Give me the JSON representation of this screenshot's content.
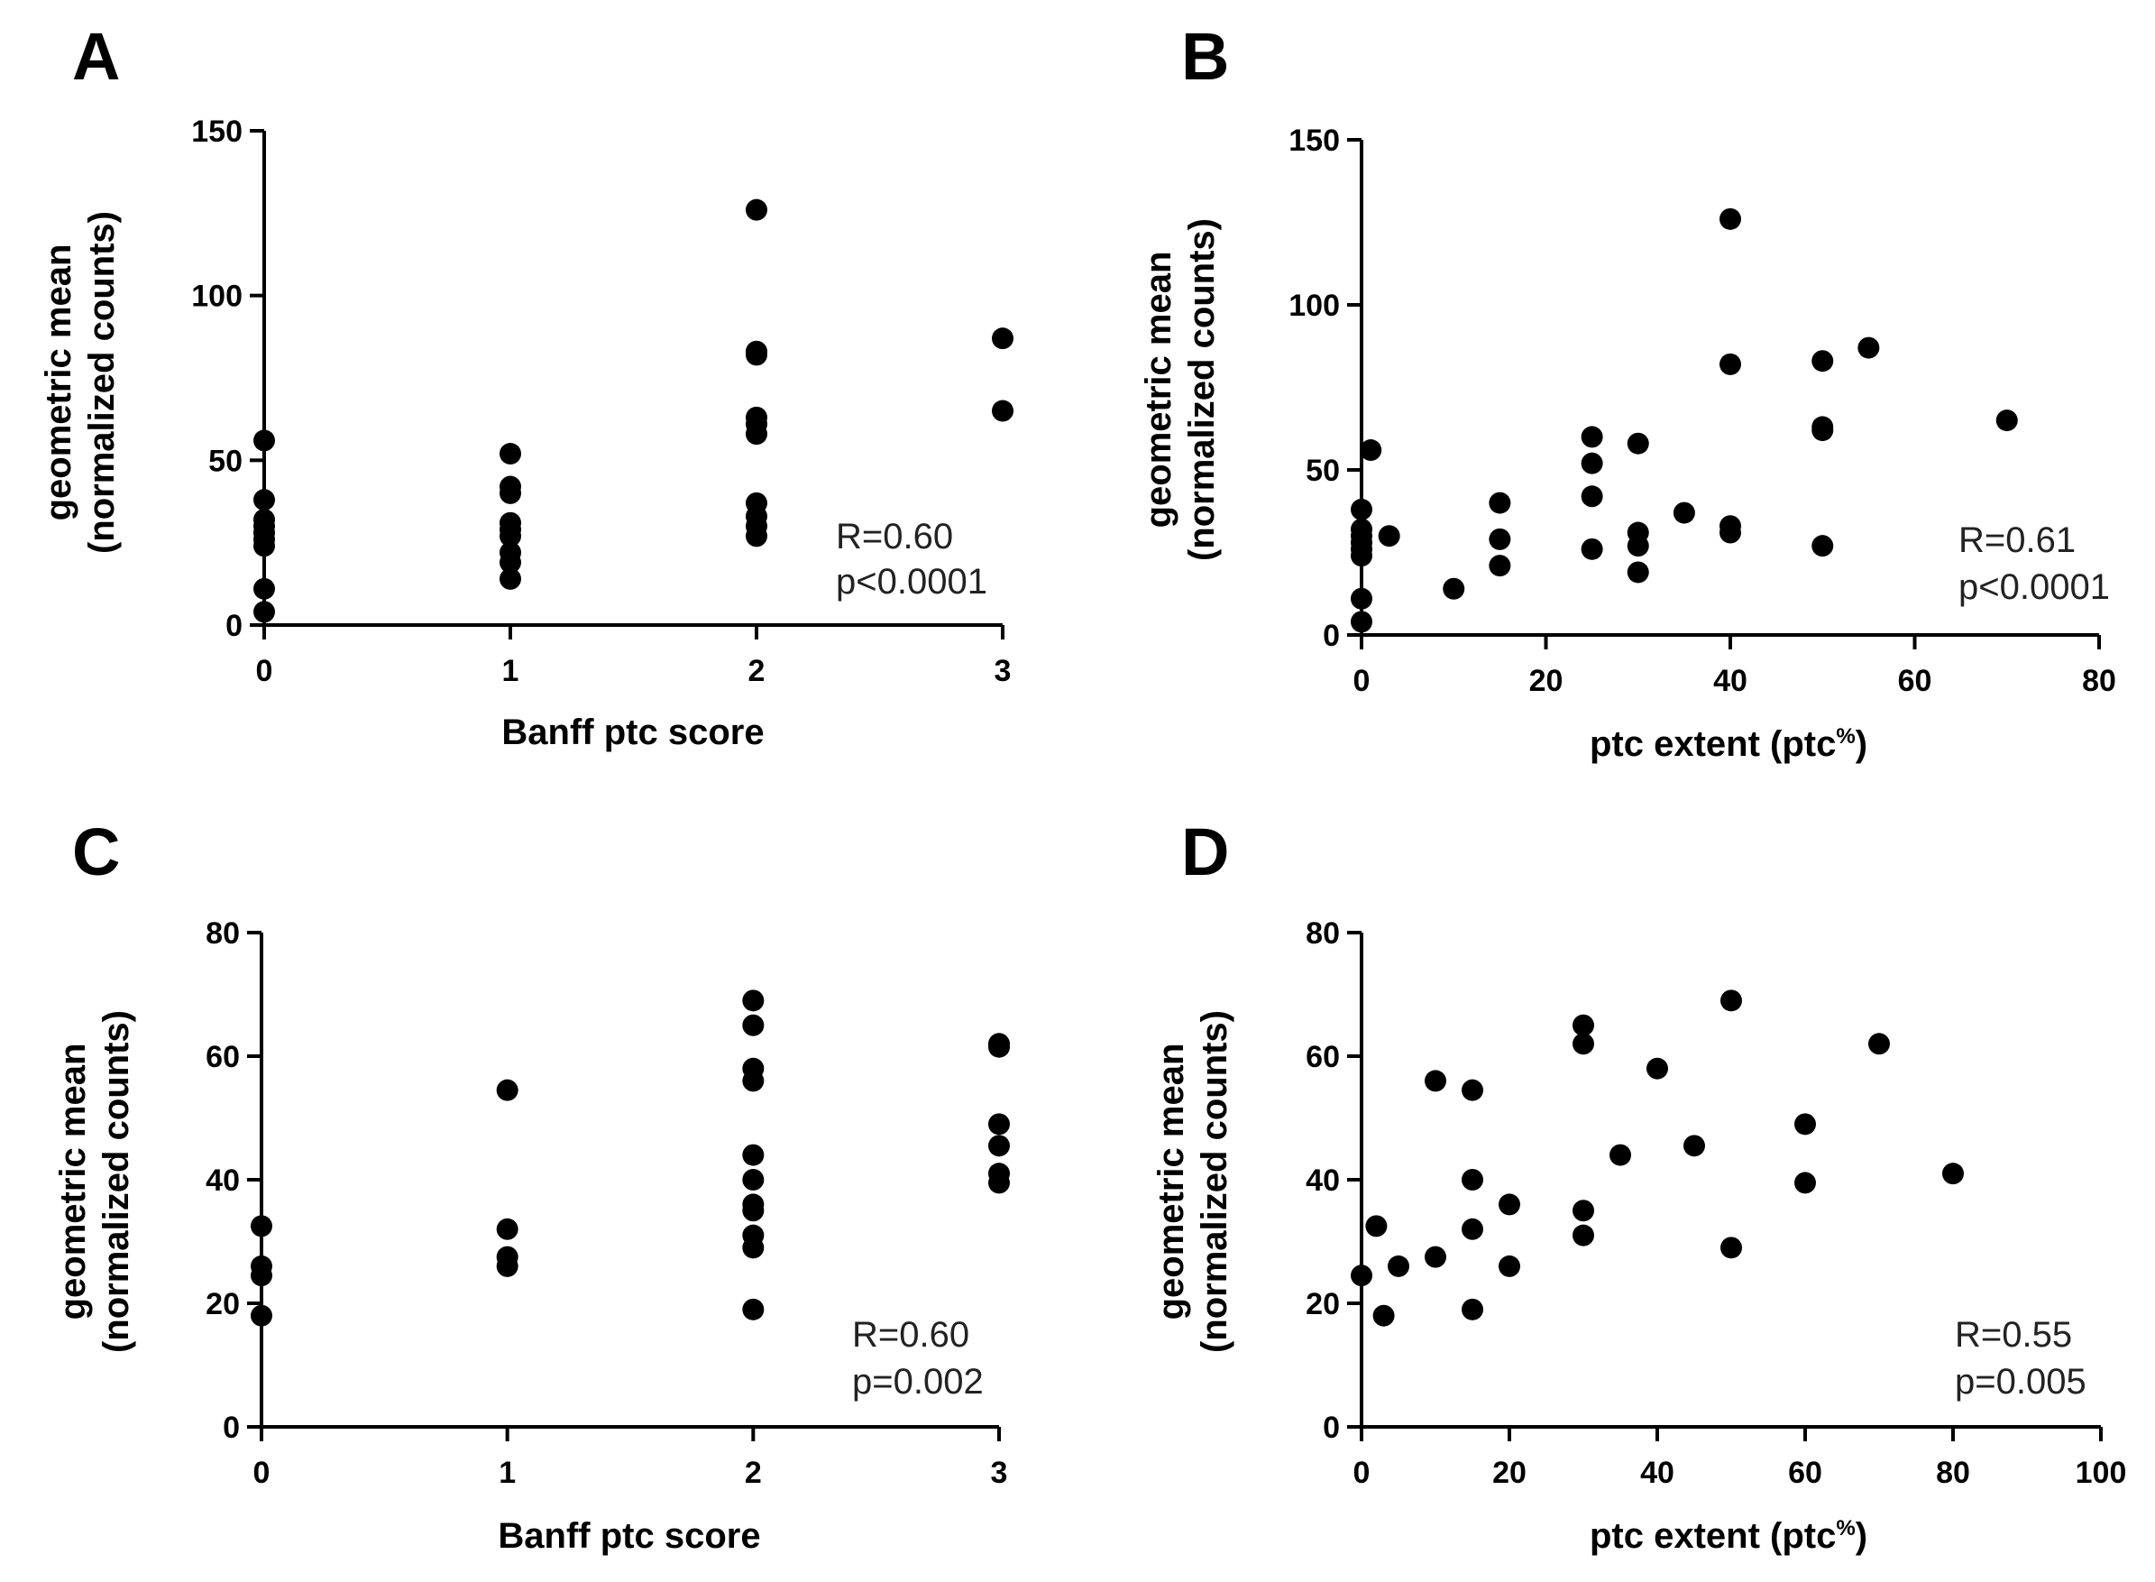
{
  "chart_data": [
    {
      "type": "scatter",
      "panel": "A",
      "title": "",
      "xlabel": "Banff ptc score",
      "ylabel_line1": "geometric mean",
      "ylabel_line2": "(normalized counts)",
      "xlim": [
        0,
        3
      ],
      "ylim": [
        0,
        150
      ],
      "xticks": [
        0,
        1,
        2,
        3
      ],
      "yticks": [
        0,
        50,
        100,
        150
      ],
      "grid": false,
      "stat_r": "R=0.60",
      "stat_p": "p<0.0001",
      "points": [
        {
          "x": 0,
          "y": 56
        },
        {
          "x": 0,
          "y": 38
        },
        {
          "x": 0,
          "y": 32
        },
        {
          "x": 0,
          "y": 30
        },
        {
          "x": 0,
          "y": 28
        },
        {
          "x": 0,
          "y": 26
        },
        {
          "x": 0,
          "y": 24
        },
        {
          "x": 0,
          "y": 11
        },
        {
          "x": 0,
          "y": 4
        },
        {
          "x": 1,
          "y": 52
        },
        {
          "x": 1,
          "y": 42
        },
        {
          "x": 1,
          "y": 40
        },
        {
          "x": 1,
          "y": 31
        },
        {
          "x": 1,
          "y": 29
        },
        {
          "x": 1,
          "y": 27
        },
        {
          "x": 1,
          "y": 22
        },
        {
          "x": 1,
          "y": 19
        },
        {
          "x": 1,
          "y": 14
        },
        {
          "x": 2,
          "y": 126
        },
        {
          "x": 2,
          "y": 83
        },
        {
          "x": 2,
          "y": 82
        },
        {
          "x": 2,
          "y": 63
        },
        {
          "x": 2,
          "y": 61
        },
        {
          "x": 2,
          "y": 58
        },
        {
          "x": 2,
          "y": 37
        },
        {
          "x": 2,
          "y": 33
        },
        {
          "x": 2,
          "y": 30
        },
        {
          "x": 2,
          "y": 27
        },
        {
          "x": 3,
          "y": 87
        },
        {
          "x": 3,
          "y": 65
        }
      ]
    },
    {
      "type": "scatter",
      "panel": "B",
      "title": "",
      "xlabel": "ptc extent (ptc",
      "xlabel_sup": "%",
      "xlabel_end": ")",
      "ylabel_line1": "geometric mean",
      "ylabel_line2": "(normalized counts)",
      "xlim": [
        0,
        80
      ],
      "ylim": [
        0,
        150
      ],
      "xticks": [
        0,
        20,
        40,
        60,
        80
      ],
      "yticks": [
        0,
        50,
        100,
        150
      ],
      "grid": false,
      "stat_r": "R=0.61",
      "stat_p": "p<0.0001",
      "points": [
        {
          "x": 0,
          "y": 38
        },
        {
          "x": 0,
          "y": 32
        },
        {
          "x": 0,
          "y": 30
        },
        {
          "x": 0,
          "y": 28
        },
        {
          "x": 0,
          "y": 26
        },
        {
          "x": 0,
          "y": 24
        },
        {
          "x": 0,
          "y": 11
        },
        {
          "x": 0,
          "y": 4
        },
        {
          "x": 1,
          "y": 56
        },
        {
          "x": 3,
          "y": 30
        },
        {
          "x": 10,
          "y": 14
        },
        {
          "x": 15,
          "y": 40
        },
        {
          "x": 15,
          "y": 29
        },
        {
          "x": 15,
          "y": 21
        },
        {
          "x": 25,
          "y": 60
        },
        {
          "x": 25,
          "y": 52
        },
        {
          "x": 25,
          "y": 42
        },
        {
          "x": 25,
          "y": 26
        },
        {
          "x": 30,
          "y": 58
        },
        {
          "x": 30,
          "y": 31
        },
        {
          "x": 30,
          "y": 27
        },
        {
          "x": 30,
          "y": 19
        },
        {
          "x": 35,
          "y": 37
        },
        {
          "x": 40,
          "y": 126
        },
        {
          "x": 40,
          "y": 82
        },
        {
          "x": 40,
          "y": 33
        },
        {
          "x": 40,
          "y": 31
        },
        {
          "x": 50,
          "y": 83
        },
        {
          "x": 50,
          "y": 63
        },
        {
          "x": 50,
          "y": 62
        },
        {
          "x": 50,
          "y": 27
        },
        {
          "x": 55,
          "y": 87
        },
        {
          "x": 70,
          "y": 65
        }
      ]
    },
    {
      "type": "scatter",
      "panel": "C",
      "title": "",
      "xlabel": "Banff ptc score",
      "ylabel_line1": "geometric mean",
      "ylabel_line2": "(normalized counts)",
      "xlim": [
        0,
        3
      ],
      "ylim": [
        0,
        80
      ],
      "xticks": [
        0,
        1,
        2,
        3
      ],
      "yticks": [
        0,
        20,
        40,
        60,
        80
      ],
      "grid": false,
      "stat_r": "R=0.60",
      "stat_p": "p=0.002",
      "points": [
        {
          "x": 0,
          "y": 32.5
        },
        {
          "x": 0,
          "y": 26
        },
        {
          "x": 0,
          "y": 24.5
        },
        {
          "x": 0,
          "y": 18
        },
        {
          "x": 1,
          "y": 54.5
        },
        {
          "x": 1,
          "y": 32
        },
        {
          "x": 1,
          "y": 27.5
        },
        {
          "x": 1,
          "y": 26
        },
        {
          "x": 2,
          "y": 69
        },
        {
          "x": 2,
          "y": 65
        },
        {
          "x": 2,
          "y": 58
        },
        {
          "x": 2,
          "y": 56
        },
        {
          "x": 2,
          "y": 44
        },
        {
          "x": 2,
          "y": 40
        },
        {
          "x": 2,
          "y": 36
        },
        {
          "x": 2,
          "y": 35
        },
        {
          "x": 2,
          "y": 31
        },
        {
          "x": 2,
          "y": 29
        },
        {
          "x": 2,
          "y": 19
        },
        {
          "x": 3,
          "y": 62
        },
        {
          "x": 3,
          "y": 61.5
        },
        {
          "x": 3,
          "y": 49
        },
        {
          "x": 3,
          "y": 45.5
        },
        {
          "x": 3,
          "y": 41
        },
        {
          "x": 3,
          "y": 39.5
        }
      ]
    },
    {
      "type": "scatter",
      "panel": "D",
      "title": "",
      "xlabel": "ptc extent (ptc",
      "xlabel_sup": "%",
      "xlabel_end": ")",
      "ylabel_line1": "geometric mean",
      "ylabel_line2": "(normalized counts)",
      "xlim": [
        0,
        100
      ],
      "ylim": [
        0,
        80
      ],
      "xticks": [
        0,
        20,
        40,
        60,
        80,
        100
      ],
      "yticks": [
        0,
        20,
        40,
        60,
        80
      ],
      "grid": false,
      "stat_r": "R=0.55",
      "stat_p": "p=0.005",
      "points": [
        {
          "x": 0,
          "y": 24.5
        },
        {
          "x": 2,
          "y": 32.5
        },
        {
          "x": 3,
          "y": 18
        },
        {
          "x": 5,
          "y": 26
        },
        {
          "x": 10,
          "y": 56
        },
        {
          "x": 10,
          "y": 27.5
        },
        {
          "x": 15,
          "y": 54.5
        },
        {
          "x": 15,
          "y": 40
        },
        {
          "x": 15,
          "y": 32
        },
        {
          "x": 15,
          "y": 19
        },
        {
          "x": 20,
          "y": 36
        },
        {
          "x": 20,
          "y": 26
        },
        {
          "x": 30,
          "y": 65
        },
        {
          "x": 30,
          "y": 62
        },
        {
          "x": 30,
          "y": 35
        },
        {
          "x": 30,
          "y": 31
        },
        {
          "x": 35,
          "y": 44
        },
        {
          "x": 40,
          "y": 58
        },
        {
          "x": 45,
          "y": 45.5
        },
        {
          "x": 50,
          "y": 69
        },
        {
          "x": 50,
          "y": 29
        },
        {
          "x": 60,
          "y": 49
        },
        {
          "x": 60,
          "y": 39.5
        },
        {
          "x": 70,
          "y": 62
        },
        {
          "x": 80,
          "y": 41
        }
      ]
    }
  ]
}
